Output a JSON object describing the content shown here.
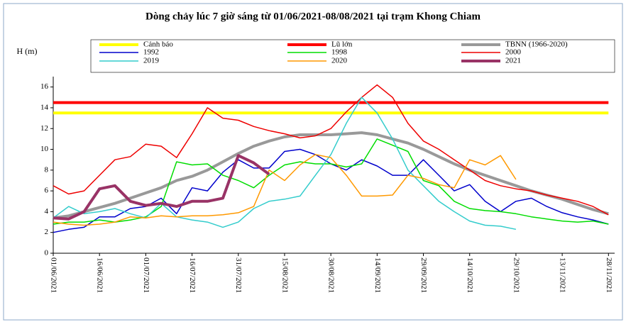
{
  "chart_data": {
    "type": "line",
    "title": "Dòng chảy lúc 7 giờ sáng từ 01/06/2021-08/08/2021 tại trạm Khong Chiam",
    "y_label": "H (m)",
    "x": [
      "01/06/2021",
      "06/06/2021",
      "11/06/2021",
      "16/06/2021",
      "21/06/2021",
      "26/06/2021",
      "01/07/2021",
      "06/07/2021",
      "11/07/2021",
      "16/07/2021",
      "21/07/2021",
      "26/07/2021",
      "31/07/2021",
      "05/08/2021",
      "10/08/2021",
      "15/08/2021",
      "20/08/2021",
      "25/08/2021",
      "30/08/2021",
      "04/09/2021",
      "09/09/2021",
      "14/09/2021",
      "19/09/2021",
      "24/09/2021",
      "29/09/2021",
      "04/10/2021",
      "09/10/2021",
      "14/10/2021",
      "19/10/2021",
      "24/10/2021",
      "29/10/2021",
      "03/11/2021",
      "08/11/2021",
      "13/11/2021",
      "18/11/2021",
      "23/11/2021",
      "28/11/2021"
    ],
    "xlim": [
      "01/06/2021",
      "30/11/2021"
    ],
    "xticks": [
      "01/06/2021",
      "16/06/2021",
      "01/07/2021",
      "16/07/2021",
      "31/07/2021",
      "15/08/2021",
      "30/08/2021",
      "14/09/2021",
      "29/09/2021",
      "14/10/2021",
      "29/10/2021",
      "13/11/2021",
      "28/11/2021"
    ],
    "ylim": [
      0,
      17
    ],
    "yticks": [
      0,
      2,
      4,
      6,
      8,
      10,
      12,
      14,
      16
    ],
    "series": [
      {
        "name": "Cảnh báo",
        "color": "#ffff00",
        "width": 4,
        "values": [
          13.5,
          13.5,
          13.5,
          13.5,
          13.5,
          13.5,
          13.5,
          13.5,
          13.5,
          13.5,
          13.5,
          13.5,
          13.5,
          13.5,
          13.5,
          13.5,
          13.5,
          13.5,
          13.5,
          13.5,
          13.5,
          13.5,
          13.5,
          13.5,
          13.5,
          13.5,
          13.5,
          13.5,
          13.5,
          13.5,
          13.5,
          13.5,
          13.5,
          13.5,
          13.5,
          13.5,
          13.5
        ]
      },
      {
        "name": "Lũ lớn",
        "color": "#ff0000",
        "width": 4,
        "values": [
          14.5,
          14.5,
          14.5,
          14.5,
          14.5,
          14.5,
          14.5,
          14.5,
          14.5,
          14.5,
          14.5,
          14.5,
          14.5,
          14.5,
          14.5,
          14.5,
          14.5,
          14.5,
          14.5,
          14.5,
          14.5,
          14.5,
          14.5,
          14.5,
          14.5,
          14.5,
          14.5,
          14.5,
          14.5,
          14.5,
          14.5,
          14.5,
          14.5,
          14.5,
          14.5,
          14.5,
          14.5
        ]
      },
      {
        "name": "TBNN (1966-2020)",
        "color": "#999999",
        "width": 4,
        "values": [
          3.4,
          3.6,
          4.0,
          4.4,
          4.8,
          5.3,
          5.8,
          6.3,
          7.0,
          7.4,
          8.0,
          8.8,
          9.6,
          10.3,
          10.8,
          11.2,
          11.4,
          11.4,
          11.4,
          11.5,
          11.6,
          11.4,
          11.0,
          10.6,
          10.0,
          9.3,
          8.6,
          8.0,
          7.5,
          7.0,
          6.5,
          6.0,
          5.6,
          5.2,
          4.7,
          4.2,
          3.8
        ]
      },
      {
        "name": "1992",
        "color": "#0000cc",
        "width": 1.5,
        "values": [
          2.0,
          2.3,
          2.5,
          3.5,
          3.5,
          4.3,
          4.5,
          5.3,
          3.8,
          6.3,
          6.0,
          7.8,
          9.0,
          8.2,
          8.2,
          9.8,
          10.0,
          9.5,
          8.6,
          8.0,
          9.0,
          8.4,
          7.5,
          7.5,
          9.0,
          7.5,
          6.0,
          6.6,
          5.0,
          4.0,
          5.0,
          5.3,
          4.5,
          3.9,
          3.5,
          3.2,
          2.8
        ]
      },
      {
        "name": "1998",
        "color": "#00dd00",
        "width": 1.5,
        "values": [
          2.8,
          3.0,
          3.0,
          3.2,
          3.0,
          3.2,
          3.5,
          4.5,
          8.8,
          8.5,
          8.6,
          7.5,
          7.0,
          6.3,
          7.5,
          8.5,
          8.8,
          8.6,
          8.6,
          8.3,
          8.6,
          11.0,
          10.4,
          9.8,
          7.0,
          6.5,
          5.0,
          4.3,
          4.1,
          4.0,
          3.8,
          3.5,
          3.3,
          3.1,
          3.0,
          3.1,
          2.8
        ]
      },
      {
        "name": "2000",
        "color": "#ee0000",
        "width": 1.5,
        "values": [
          6.5,
          5.7,
          6.0,
          7.5,
          9.0,
          9.3,
          10.5,
          10.3,
          9.2,
          11.5,
          14.0,
          13.0,
          12.8,
          12.2,
          11.8,
          11.5,
          11.1,
          11.3,
          12.0,
          13.6,
          15.0,
          16.2,
          15.0,
          12.5,
          10.8,
          10.0,
          9.0,
          8.0,
          7.0,
          6.5,
          6.2,
          6.0,
          5.6,
          5.3,
          5.0,
          4.5,
          3.7
        ]
      },
      {
        "name": "2019",
        "color": "#33cccc",
        "width": 1.5,
        "values": [
          3.4,
          4.5,
          3.8,
          4.0,
          4.3,
          3.8,
          3.4,
          4.8,
          3.5,
          3.2,
          3.0,
          2.5,
          3.0,
          4.3,
          5.0,
          5.2,
          5.5,
          7.5,
          9.5,
          12.5,
          15.0,
          13.5,
          11.0,
          8.0,
          6.5,
          5.0,
          4.0,
          3.1,
          2.7,
          2.6,
          2.3,
          null,
          null,
          null,
          null,
          null,
          null
        ]
      },
      {
        "name": "2020",
        "color": "#ff9900",
        "width": 1.5,
        "values": [
          3.0,
          2.8,
          2.7,
          2.8,
          3.0,
          3.5,
          3.4,
          3.6,
          3.5,
          3.6,
          3.6,
          3.7,
          3.9,
          4.5,
          8.0,
          7.0,
          8.5,
          9.5,
          9.2,
          7.5,
          5.5,
          5.5,
          5.6,
          7.5,
          7.2,
          6.6,
          6.3,
          9.0,
          8.5,
          9.4,
          7.1,
          null,
          null,
          null,
          null,
          null,
          null
        ]
      },
      {
        "name": "2021",
        "color": "#993366",
        "width": 4,
        "values": [
          3.4,
          3.3,
          4.0,
          6.2,
          6.5,
          5.0,
          4.6,
          4.8,
          4.5,
          5.0,
          5.0,
          5.3,
          9.4,
          8.7,
          7.6,
          null,
          null,
          null,
          null,
          null,
          null,
          null,
          null,
          null,
          null,
          null,
          null,
          null,
          null,
          null,
          null,
          null,
          null,
          null,
          null,
          null,
          null
        ]
      }
    ]
  }
}
